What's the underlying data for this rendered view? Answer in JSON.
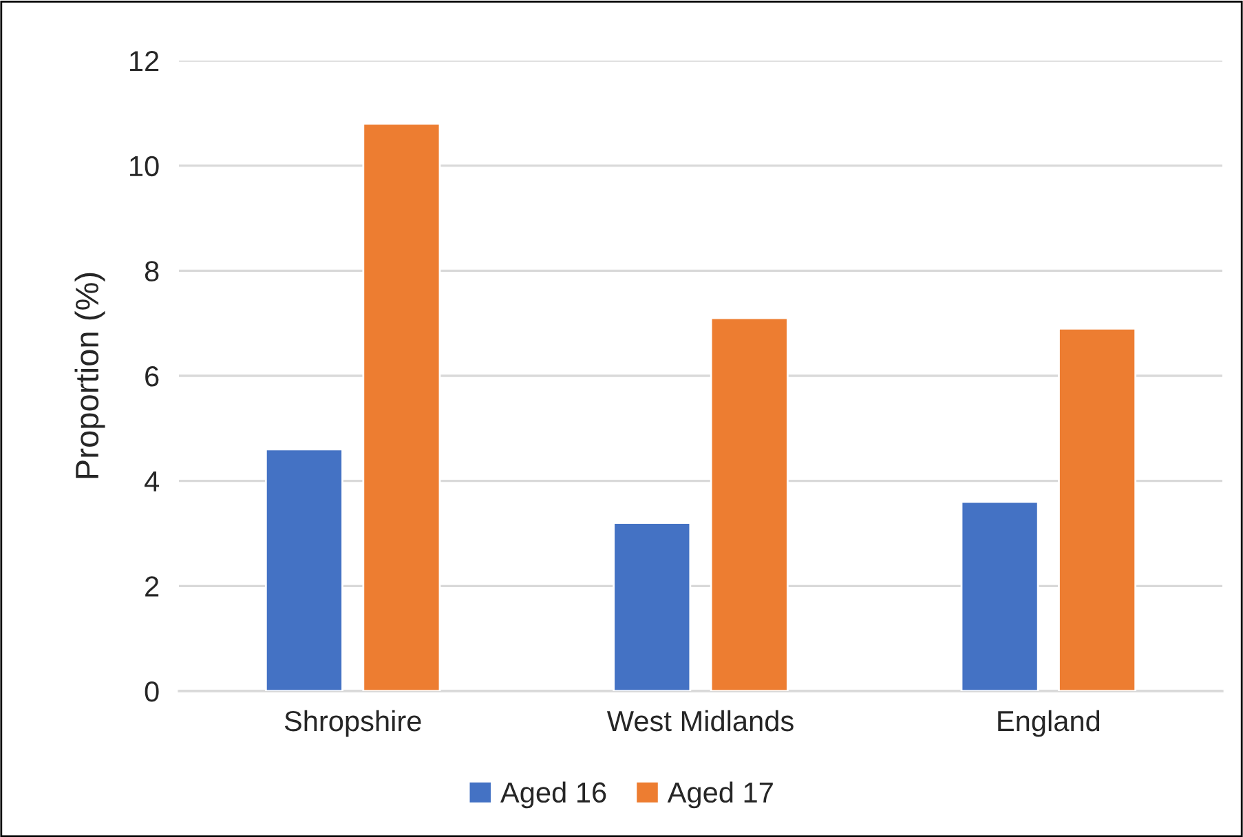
{
  "chart_data": {
    "type": "bar",
    "ylabel": "Proportion (%)",
    "categories": [
      "Shropshire",
      "West Midlands",
      "England"
    ],
    "series": [
      {
        "name": "Aged 16",
        "color": "#4472c4",
        "values": [
          4.6,
          3.2,
          3.6
        ]
      },
      {
        "name": "Aged 17",
        "color": "#ed7d31",
        "values": [
          10.8,
          7.1,
          6.9
        ]
      }
    ],
    "ylim": [
      0,
      12
    ],
    "yticks": [
      0,
      2,
      4,
      6,
      8,
      10,
      12
    ],
    "grid": "y",
    "legend": "bottom"
  }
}
